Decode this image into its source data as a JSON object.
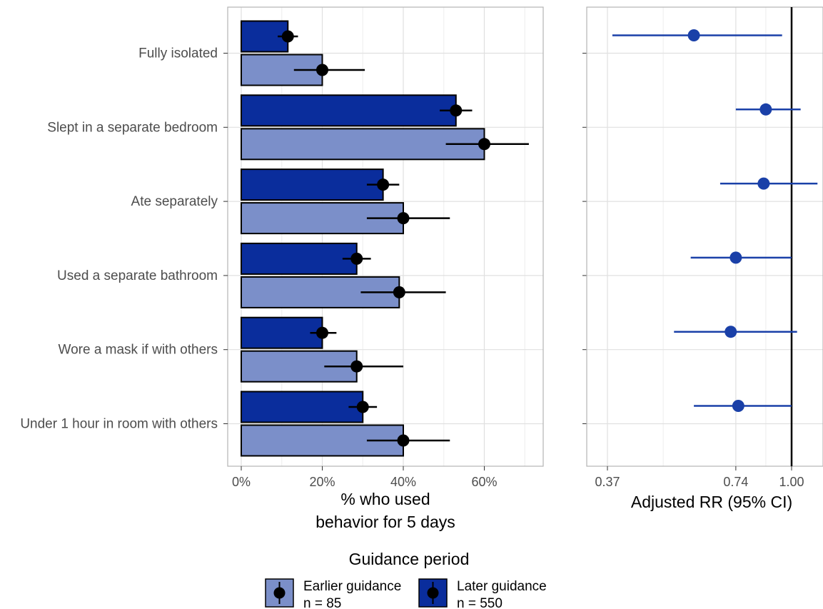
{
  "chart_data": [
    {
      "type": "bar",
      "orientation": "horizontal",
      "categories": [
        "Fully isolated",
        "Slept in a separate bedroom",
        "Ate separately",
        "Used a separate bathroom",
        "Wore a mask if with others",
        "Under 1 hour in room with others"
      ],
      "series": [
        {
          "name": "Later guidance",
          "values": [
            11.5,
            53,
            35,
            28.5,
            20,
            30
          ],
          "ci_low": [
            9,
            49,
            31,
            25,
            17,
            26.5
          ],
          "ci_high": [
            14,
            57,
            39,
            32,
            23.5,
            33.5
          ]
        },
        {
          "name": "Earlier guidance",
          "values": [
            20,
            60,
            40,
            39,
            28.5,
            40
          ],
          "ci_low": [
            13,
            50.5,
            31,
            29.5,
            20.5,
            31
          ],
          "ci_high": [
            30.5,
            71,
            51.5,
            50.5,
            40,
            51.5
          ]
        }
      ],
      "xlabel": "% who used behavior for 5 days",
      "xticks": [
        "0%",
        "20%",
        "40%",
        "60%"
      ],
      "xlim": [
        0,
        75
      ],
      "grid": true
    },
    {
      "type": "scatter",
      "subtype": "forest",
      "categories": [
        "Fully isolated",
        "Slept in a separate bedroom",
        "Ate separately",
        "Used a separate bathroom",
        "Wore a mask if with others",
        "Under 1 hour in room with others"
      ],
      "points": [
        {
          "rr": 0.59,
          "lo": 0.38,
          "hi": 0.95
        },
        {
          "rr": 0.87,
          "lo": 0.74,
          "hi": 1.05
        },
        {
          "rr": 0.86,
          "lo": 0.68,
          "hi": 1.15
        },
        {
          "rr": 0.74,
          "lo": 0.58,
          "hi": 1.0
        },
        {
          "rr": 0.72,
          "lo": 0.53,
          "hi": 1.03
        },
        {
          "rr": 0.75,
          "lo": 0.59,
          "hi": 1.0
        }
      ],
      "xlabel": "Adjusted RR (95% CI)",
      "xticks": [
        0.37,
        0.74,
        1.0
      ],
      "xtick_labels": [
        "0.37",
        "0.74",
        "1.00"
      ],
      "reference_line": 1.0,
      "grid": true
    }
  ],
  "legend": {
    "title": "Guidance period",
    "position": "bottom",
    "items": [
      {
        "line1": "Earlier guidance",
        "line2": "n = 85",
        "color": "#7b8fc9"
      },
      {
        "line1": "Later guidance",
        "line2": "n = 550",
        "color": "#0a2d9c"
      }
    ]
  },
  "colors": {
    "later": "#0a2d9c",
    "earlier": "#7b8fc9",
    "rr_point": "#1a40a8",
    "grid": "#e0e0e0",
    "panel_border": "#b3b3b3"
  }
}
